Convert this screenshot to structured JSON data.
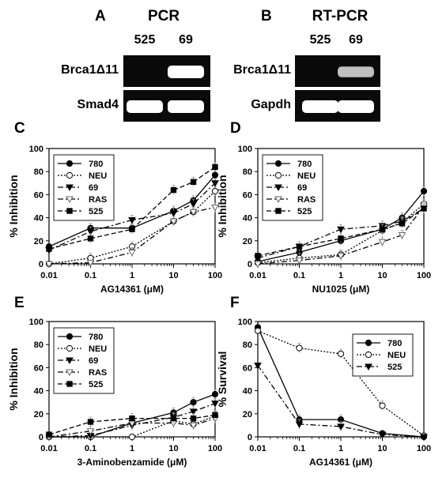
{
  "gels": [
    {
      "panel": "A",
      "title": "PCR",
      "lanes": [
        "525",
        "69"
      ],
      "rows": [
        {
          "label": "Brca1Δ11",
          "bands": [
            0,
            1
          ]
        },
        {
          "label": "Smad4",
          "bands": [
            1,
            1
          ]
        }
      ]
    },
    {
      "panel": "B",
      "title": "RT-PCR",
      "lanes": [
        "525",
        "69"
      ],
      "rows": [
        {
          "label": "Brca1Δ11",
          "bands": [
            0,
            0.6
          ]
        },
        {
          "label": "Gapdh",
          "bands": [
            1,
            1
          ]
        }
      ]
    }
  ],
  "chart_data": [
    {
      "panel": "C",
      "type": "line",
      "xlabel": "AG14361 (μM)",
      "ylabel": "% Inhibition",
      "xscale": "log",
      "xlim": [
        0.01,
        100
      ],
      "ylim": [
        0,
        100
      ],
      "xticks": [
        "0.01",
        "0.1",
        "1",
        "10",
        "100"
      ],
      "yticks": [
        0,
        20,
        40,
        60,
        80,
        100
      ],
      "legend_position": "top-left",
      "x": [
        0.01,
        0.1,
        1,
        10,
        30,
        100
      ],
      "series": [
        {
          "name": "780",
          "marker": "filled-circle",
          "line": "solid",
          "values": [
            15,
            31,
            31,
            46,
            55,
            77
          ]
        },
        {
          "name": "NEU",
          "marker": "open-circle",
          "line": "dotted",
          "values": [
            0,
            5,
            15,
            37,
            45,
            63
          ]
        },
        {
          "name": "69",
          "marker": "filled-triangle",
          "line": "dashdot",
          "values": [
            12,
            28,
            38,
            44,
            52,
            70
          ]
        },
        {
          "name": "RAS",
          "marker": "open-triangle",
          "line": "dashdot",
          "values": [
            0,
            1,
            10,
            37,
            45,
            49
          ]
        },
        {
          "name": "525",
          "marker": "filled-square",
          "line": "dashed",
          "values": [
            13,
            22,
            30,
            64,
            71,
            84
          ]
        }
      ]
    },
    {
      "panel": "D",
      "type": "line",
      "xlabel": "NU1025 (μM)",
      "ylabel": "% Inhibition",
      "xscale": "log",
      "xlim": [
        0.01,
        100
      ],
      "ylim": [
        0,
        100
      ],
      "xticks": [
        "0.01",
        "0.1",
        "1",
        "10",
        "100"
      ],
      "yticks": [
        0,
        20,
        40,
        60,
        80,
        100
      ],
      "legend_position": "top-left",
      "x": [
        0.01,
        0.1,
        1,
        10,
        30,
        100
      ],
      "series": [
        {
          "name": "780",
          "marker": "filled-circle",
          "line": "solid",
          "values": [
            2,
            10,
            20,
            30,
            40,
            63
          ]
        },
        {
          "name": "NEU",
          "marker": "open-circle",
          "line": "dotted",
          "values": [
            1,
            5,
            8,
            29,
            36,
            52
          ]
        },
        {
          "name": "69",
          "marker": "filled-triangle",
          "line": "dashdot",
          "values": [
            5,
            15,
            30,
            33,
            37,
            48
          ]
        },
        {
          "name": "RAS",
          "marker": "open-triangle",
          "line": "dashdot",
          "values": [
            0,
            3,
            7,
            19,
            25,
            50
          ]
        },
        {
          "name": "525",
          "marker": "filled-square",
          "line": "dashed",
          "values": [
            7,
            15,
            22,
            30,
            35,
            48
          ]
        }
      ]
    },
    {
      "panel": "E",
      "type": "line",
      "xlabel": "3-Aminobenzamide (μM)",
      "ylabel": "% Inhibition",
      "xscale": "log",
      "xlim": [
        0.01,
        100
      ],
      "ylim": [
        0,
        100
      ],
      "xticks": [
        "0.01",
        "0.1",
        "1",
        "10",
        "100"
      ],
      "yticks": [
        0,
        20,
        40,
        60,
        80,
        100
      ],
      "legend_position": "top-left",
      "x": [
        0.01,
        0.1,
        1,
        10,
        30,
        100
      ],
      "series": [
        {
          "name": "780",
          "marker": "filled-circle",
          "line": "solid",
          "values": [
            0,
            0,
            12,
            21,
            30,
            37
          ]
        },
        {
          "name": "NEU",
          "marker": "open-circle",
          "line": "dotted",
          "values": [
            0,
            0,
            0,
            14,
            11,
            18
          ]
        },
        {
          "name": "69",
          "marker": "filled-triangle",
          "line": "dashdot",
          "values": [
            0,
            1,
            10,
            17,
            22,
            29
          ]
        },
        {
          "name": "RAS",
          "marker": "open-triangle",
          "line": "dashdot",
          "values": [
            0,
            5,
            12,
            12,
            10,
            16
          ]
        },
        {
          "name": "525",
          "marker": "filled-square",
          "line": "dashed",
          "values": [
            2,
            13,
            16,
            16,
            16,
            19
          ]
        }
      ]
    },
    {
      "panel": "F",
      "type": "line",
      "xlabel": "AG14361 (μM)",
      "ylabel": "% Survival",
      "xscale": "log",
      "xlim": [
        0.01,
        100
      ],
      "ylim": [
        0,
        100
      ],
      "xticks": [
        "0.01",
        "0.1",
        "1",
        "10",
        "100"
      ],
      "yticks": [
        0,
        20,
        40,
        60,
        80,
        100
      ],
      "legend_position": "top-right",
      "x": [
        0.01,
        0.1,
        1,
        10,
        100
      ],
      "series": [
        {
          "name": "780",
          "marker": "filled-circle",
          "line": "solid",
          "values": [
            95,
            15,
            15,
            3,
            0
          ]
        },
        {
          "name": "NEU",
          "marker": "open-circle",
          "line": "dotted",
          "values": [
            92,
            77,
            72,
            27,
            1
          ]
        },
        {
          "name": "525",
          "marker": "filled-triangle",
          "line": "dashdot",
          "values": [
            62,
            11,
            9,
            2,
            0
          ]
        }
      ]
    }
  ]
}
